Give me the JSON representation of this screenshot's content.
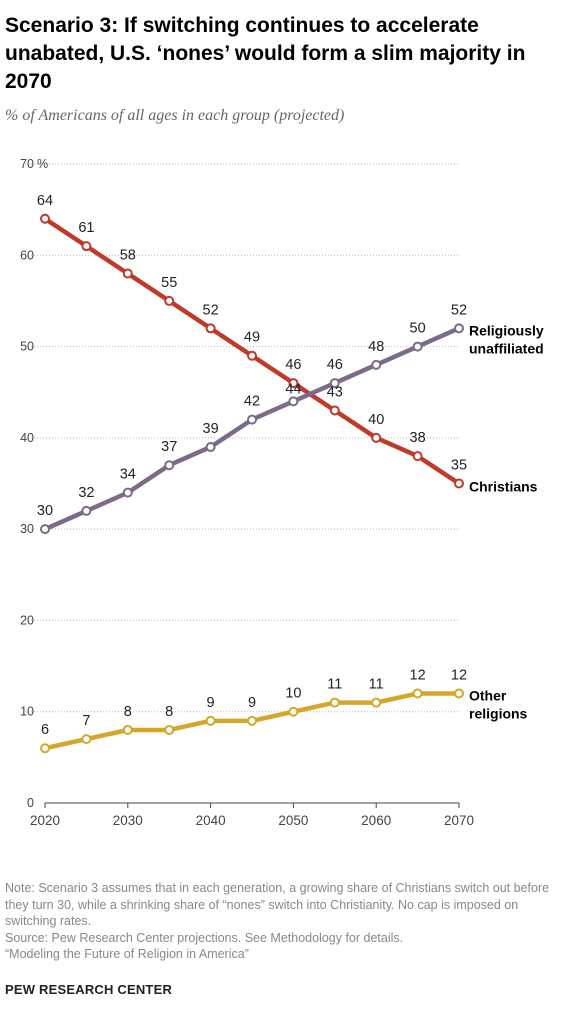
{
  "header": {
    "title": "Scenario 3: If switching continues to accelerate unabated, U.S. ‘nones’ would form a slim majority in 2070",
    "subtitle": "% of Americans of all ages in each group (projected)"
  },
  "chart_data": {
    "type": "line",
    "title": "Scenario 3: If switching continues to accelerate unabated, U.S. ‘nones’ would form a slim majority in 2070",
    "subtitle": "% of Americans of all ages in each group (projected)",
    "x": [
      2020,
      2025,
      2030,
      2035,
      2040,
      2045,
      2050,
      2055,
      2060,
      2065,
      2070
    ],
    "x_ticks": [
      2020,
      2030,
      2040,
      2050,
      2060,
      2070
    ],
    "y_ticks": [
      0,
      10,
      20,
      30,
      40,
      50,
      60,
      70
    ],
    "y_unit": "%",
    "ylim": [
      0,
      70
    ],
    "xlim": [
      2020,
      2070
    ],
    "grid": "horizontal dotted",
    "legend": "direct labels at line ends",
    "series": [
      {
        "name": "Christians",
        "label_lines": [
          "Christians"
        ],
        "color": "#c0392b",
        "values": [
          64,
          61,
          58,
          55,
          52,
          49,
          46,
          43,
          40,
          38,
          35
        ]
      },
      {
        "name": "Religiously unaffiliated",
        "label_lines": [
          "Religiously",
          "unaffiliated"
        ],
        "color": "#7b6b86",
        "values": [
          30,
          32,
          34,
          37,
          39,
          42,
          44,
          46,
          48,
          50,
          52
        ]
      },
      {
        "name": "Other religions",
        "label_lines": [
          "Other",
          "religions"
        ],
        "color": "#d4a62a",
        "values": [
          6,
          7,
          8,
          8,
          9,
          9,
          10,
          11,
          11,
          12,
          12
        ]
      }
    ]
  },
  "footer": {
    "note": "Note: Scenario 3 assumes that in each generation, a growing share of Christians switch out before they turn 30, while a shrinking share of “nones” switch into Christianity. No cap is imposed on switching rates.",
    "source": "Source: Pew Research Center projections. See Methodology for details.",
    "report": "“Modeling the Future of Religion in America”",
    "brand": "PEW RESEARCH CENTER"
  }
}
